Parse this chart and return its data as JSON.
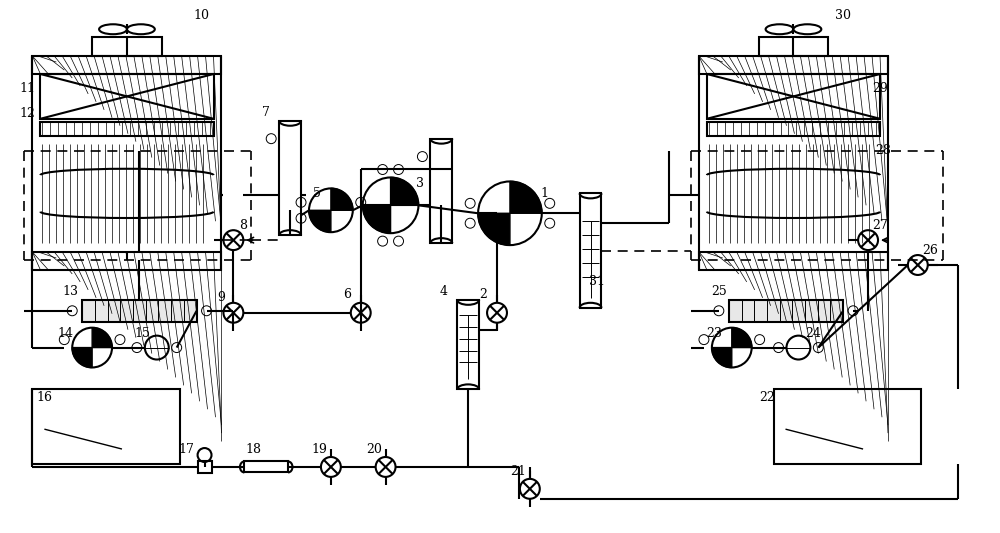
{
  "bg_color": "#ffffff",
  "lc": "#000000",
  "lw": 1.5,
  "lw_thin": 0.7,
  "lw_med": 1.0
}
